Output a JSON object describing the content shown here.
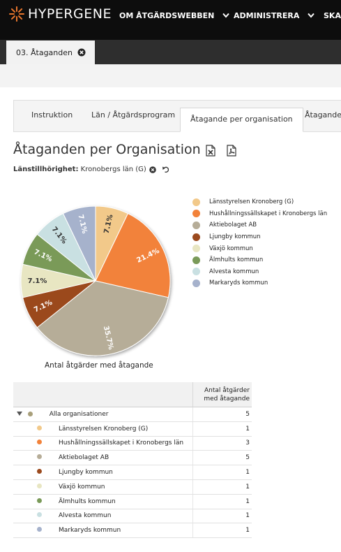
{
  "header": {
    "logo_text": "HYPERGENE",
    "nav": [
      {
        "label": "OM ÅTGÄRDSWEBBEN"
      },
      {
        "label": "ADMINISTRERA"
      },
      {
        "label": "SKAP"
      }
    ]
  },
  "document_tab": {
    "label": "03. Åtaganden"
  },
  "subtabs": [
    {
      "label": "Instruktion"
    },
    {
      "label": "Län / Åtgärdsprogram"
    },
    {
      "label": "Åtagande per organisation"
    },
    {
      "label": "Åtagande p"
    }
  ],
  "page_title": "Åtaganden per Organisation",
  "filter": {
    "label": "Länstillhörighet:",
    "value": "Kronobergs län (G)"
  },
  "chart_data": {
    "type": "pie",
    "caption": "Antal åtgärder med åtagande",
    "categories": [
      "Länsstyrelsen Kronoberg (G)",
      "Hushållningssällskapet i Kronobergs län",
      "Aktiebolaget AB",
      "Ljungby kommun",
      "Växjö kommun",
      "Älmhults kommun",
      "Alvesta kommun",
      "Markaryds kommun"
    ],
    "values": [
      1,
      3,
      5,
      1,
      1,
      1,
      1,
      1
    ],
    "data_labels": [
      "7.1%",
      "21.4%",
      "35.7%",
      "7.1%",
      "7.1%",
      "7.1%",
      "7.1%",
      "7.1%"
    ],
    "colors": [
      "#f2c98a",
      "#f2823a",
      "#b6ad98",
      "#9b4a1e",
      "#e8e6c2",
      "#7a9a59",
      "#c9e0e2",
      "#a6b2cc"
    ],
    "legend_position": "right"
  },
  "table": {
    "header": {
      "value": "Antal åtgärder med åtagande"
    },
    "total": {
      "label": "Alla organisationer",
      "value": "5"
    },
    "rows": [
      {
        "label": "Länsstyrelsen Kronoberg (G)",
        "value": "1"
      },
      {
        "label": "Hushållningssällskapet i Kronobergs län",
        "value": "3"
      },
      {
        "label": "Aktiebolaget AB",
        "value": "5"
      },
      {
        "label": "Ljungby kommun",
        "value": "1"
      },
      {
        "label": "Växjö kommun",
        "value": "1"
      },
      {
        "label": "Älmhults kommun",
        "value": "1"
      },
      {
        "label": "Alvesta kommun",
        "value": "1"
      },
      {
        "label": "Markaryds kommun",
        "value": "1"
      }
    ]
  }
}
